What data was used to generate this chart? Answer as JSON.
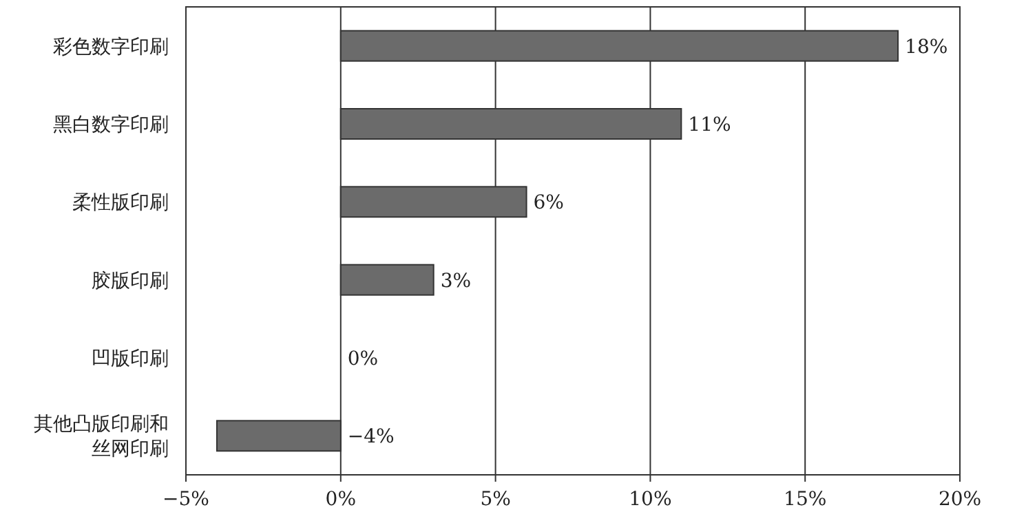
{
  "chart_data": {
    "type": "bar",
    "orientation": "horizontal",
    "categories": [
      "彩色数字印刷",
      "黑白数字印刷",
      "柔性版印刷",
      "胶版印刷",
      "凹版印刷",
      "其他凸版印刷和丝网印刷"
    ],
    "values": [
      18,
      11,
      6,
      3,
      0,
      -4
    ],
    "value_labels": [
      "18%",
      "11%",
      "6%",
      "3%",
      "0%",
      "−4%"
    ],
    "color": "#6b6b6b",
    "xlim": [
      -5,
      20
    ],
    "xticks": [
      {
        "value": -5,
        "label": "−5%"
      },
      {
        "value": 0,
        "label": "0%"
      },
      {
        "value": 5,
        "label": "5%"
      },
      {
        "value": 10,
        "label": "10%"
      },
      {
        "value": 15,
        "label": "15%"
      },
      {
        "value": 20,
        "label": "20%"
      }
    ],
    "grid": "x"
  }
}
